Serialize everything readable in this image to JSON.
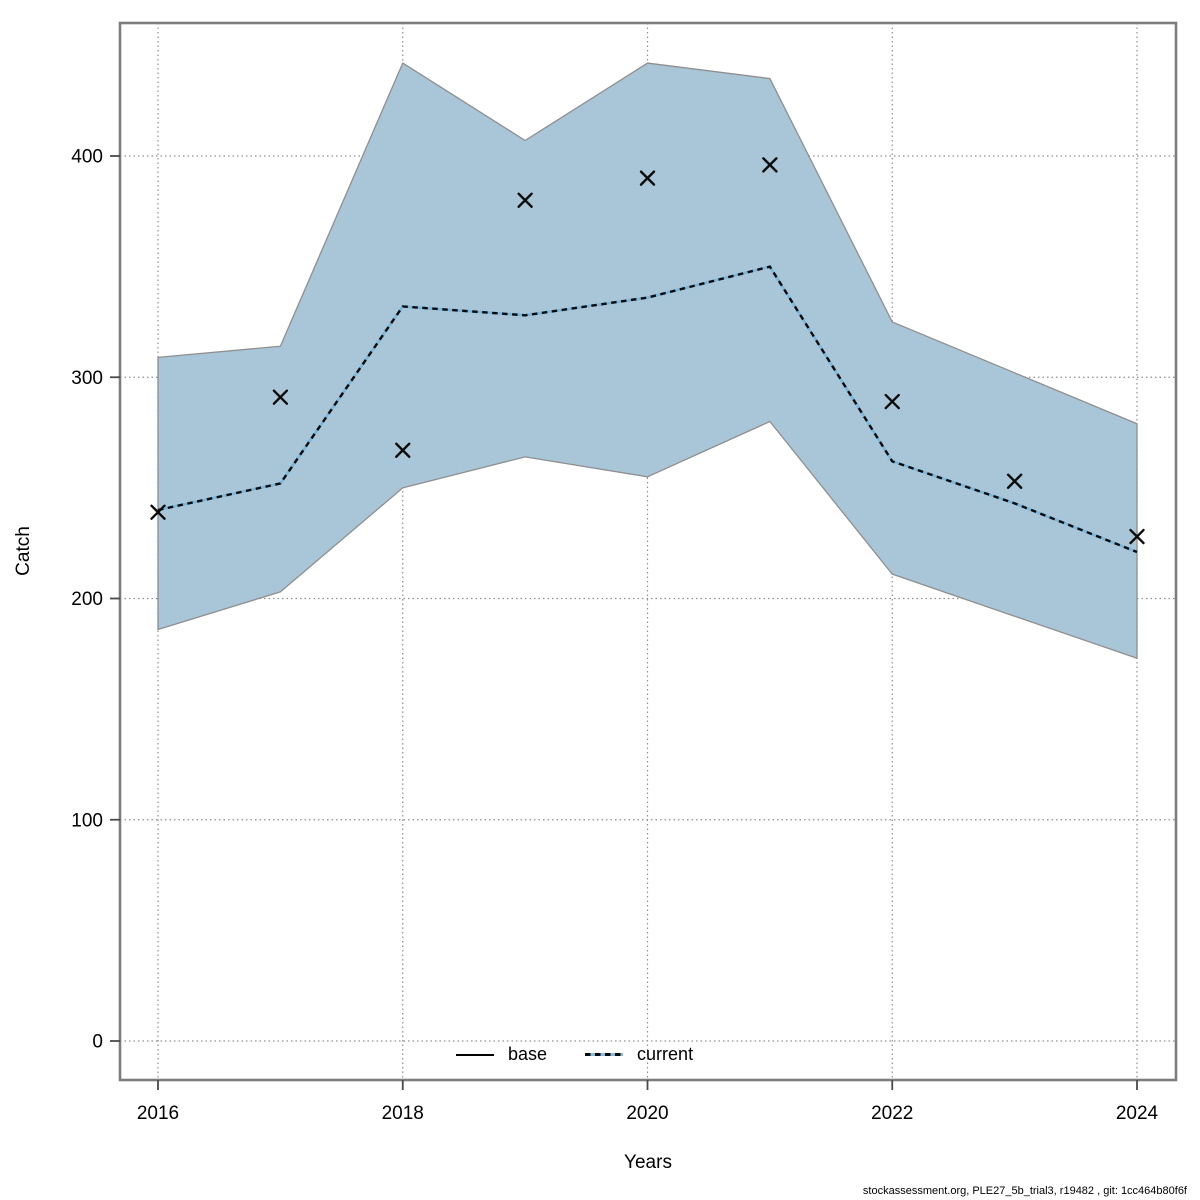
{
  "figure": {
    "title": "",
    "ylabel": "Catch",
    "xlabel": "Years",
    "footer": "stockassessment.org, PLE27_5b_trial3, r19482 , git: 1cc464b80f6f"
  },
  "legend": {
    "base_label": "base",
    "current_label": "current"
  },
  "colors": {
    "band_fill": "#a9c6d8",
    "band_edge": "#8f8f8f",
    "current_underlay": "#7db8dc",
    "current_dash": "#0b0b0b",
    "marker": "#0b0b0b",
    "box": "#7d7d7d",
    "grid": "#8f8f8f",
    "tick": "#4a4a4a",
    "text": "#000000"
  },
  "chart_data": {
    "type": "line",
    "title": "",
    "xlabel": "Years",
    "ylabel": "Catch",
    "x": [
      2016,
      2017,
      2018,
      2019,
      2020,
      2021,
      2022,
      2023,
      2024
    ],
    "xticks": [
      2016,
      2018,
      2020,
      2022,
      2024
    ],
    "yticks": [
      0,
      100,
      200,
      300,
      400
    ],
    "xlim": [
      2015.7,
      2024.3
    ],
    "ylim": [
      -18,
      460
    ],
    "grid": true,
    "legend_position": "bottom-center",
    "legend": [
      "base",
      "current"
    ],
    "series": [
      {
        "name": "observations",
        "type": "scatter",
        "marker": "x",
        "values": [
          239,
          291,
          267,
          380,
          390,
          396,
          289,
          253,
          228
        ]
      },
      {
        "name": "current",
        "type": "line",
        "style": "dotted",
        "values": [
          240,
          252,
          332,
          328,
          336,
          350,
          262,
          243,
          221
        ]
      },
      {
        "name": "confidence_band_upper",
        "type": "area-bound",
        "values": [
          309,
          314,
          442,
          407,
          442,
          435,
          325,
          302,
          279
        ]
      },
      {
        "name": "confidence_band_lower",
        "type": "area-bound",
        "values": [
          186,
          203,
          250,
          264,
          255,
          280,
          211,
          192,
          173
        ]
      }
    ]
  }
}
